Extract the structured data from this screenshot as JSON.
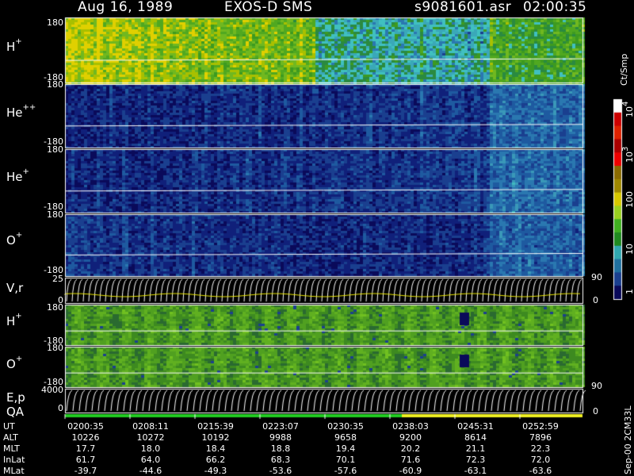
{
  "header": {
    "date": "Aug 16, 1989",
    "instrument": "EXOS-D SMS",
    "file": "s9081601.asr",
    "time": "02:00:35"
  },
  "colors": {
    "background": "#000000",
    "axis": "#ffffff",
    "trace_yellow": "#e8e400",
    "qa_green": "#22cc22",
    "qa_yellow": "#eeee22"
  },
  "panels": [
    {
      "id": "h-plus",
      "species": "H",
      "charge": "+",
      "ymax": "180",
      "ymin": "-180",
      "colormap": "wide",
      "bias": 0.45,
      "profile": [
        [
          0,
          0.55
        ],
        [
          0.3,
          0.4
        ],
        [
          0.55,
          0.35
        ],
        [
          0.82,
          0.3
        ],
        [
          1,
          0.32
        ]
      ],
      "ylim": [
        -180,
        180
      ],
      "note": "pitch angle spectrogram"
    },
    {
      "id": "he-plus-plus",
      "species": "He",
      "charge": "++",
      "ymax": "180",
      "ymin": "-180",
      "colormap": "low",
      "bias": 0.25,
      "profile": [
        [
          0,
          0.2
        ],
        [
          0.4,
          0.25
        ],
        [
          0.8,
          0.3
        ],
        [
          1,
          0.28
        ]
      ],
      "ylim": [
        -180,
        180
      ]
    },
    {
      "id": "he-plus",
      "species": "He",
      "charge": "+",
      "ymax": "180",
      "ymin": "-180",
      "colormap": "low",
      "bias": 0.25,
      "profile": [
        [
          0,
          0.22
        ],
        [
          0.4,
          0.25
        ],
        [
          0.8,
          0.32
        ],
        [
          1,
          0.3
        ]
      ],
      "ylim": [
        -180,
        180
      ]
    },
    {
      "id": "o-plus",
      "species": "O",
      "charge": "+",
      "ymax": "180",
      "ymin": "-180",
      "colormap": "low",
      "bias": 0.22,
      "profile": [
        [
          0,
          0.35
        ],
        [
          0.1,
          0.28
        ],
        [
          0.5,
          0.22
        ],
        [
          0.8,
          0.26
        ],
        [
          1,
          0.25
        ]
      ],
      "ylim": [
        -180,
        180
      ]
    }
  ],
  "vr_panel": {
    "label": "V,r",
    "ymax": "25",
    "ymin": "0",
    "right_max": "90",
    "right_min": "0"
  },
  "low_panels": [
    {
      "id": "h-plus-low",
      "species": "H",
      "charge": "+",
      "ymax": "180",
      "ymin": "-180"
    },
    {
      "id": "o-plus-low",
      "species": "O",
      "charge": "+",
      "ymax": "180",
      "ymin": "-180"
    }
  ],
  "ep_panel": {
    "label": "E,p",
    "qa_label": "QA",
    "ymax": "4000",
    "ymin": "0",
    "right_max": "90",
    "right_min": "0"
  },
  "colorbar": {
    "unit_label": "Ct/Smp",
    "ticks": [
      {
        "label": "1",
        "level": 0
      },
      {
        "label": "10",
        "level": 0.25
      },
      {
        "label": "100",
        "level": 0.5
      },
      {
        "label": "10",
        "sup": "3",
        "level": 0.75
      },
      {
        "label": "10",
        "sup": "4",
        "level": 1
      }
    ]
  },
  "chart_data": {
    "type": "heatmap",
    "title": "Aug 16, 1989  EXOS-D SMS",
    "x": [
      "0200:35",
      "0208:11",
      "0215:39",
      "0223:07",
      "0230:35",
      "0238:03",
      "0245:31",
      "0252:59"
    ],
    "y_range_pitch": [
      -180,
      180
    ],
    "series": [
      {
        "name": "UT",
        "values": [
          "0200:35",
          "0208:11",
          "0215:39",
          "0223:07",
          "0230:35",
          "0238:03",
          "0245:31",
          "0252:59"
        ]
      },
      {
        "name": "ALT",
        "values": [
          "10226",
          "10272",
          "10192",
          "9988",
          "9658",
          "9200",
          "8614",
          "7896"
        ]
      },
      {
        "name": "MLT",
        "values": [
          "17.7",
          "18.0",
          "18.4",
          "18.8",
          "19.4",
          "20.2",
          "21.1",
          "22.3"
        ]
      },
      {
        "name": "InLat",
        "values": [
          "61.7",
          "64.0",
          "66.2",
          "68.3",
          "70.1",
          "71.6",
          "72.3",
          "72.0"
        ]
      },
      {
        "name": "MLat",
        "values": [
          "-39.7",
          "-44.6",
          "-49.3",
          "-53.6",
          "-57.6",
          "-60.9",
          "-63.1",
          "-63.6"
        ]
      }
    ]
  },
  "footer_id": "Sep-00 2CM33L"
}
